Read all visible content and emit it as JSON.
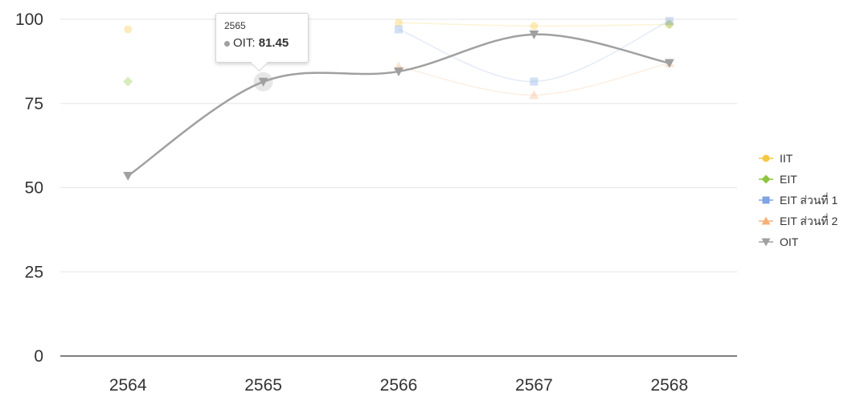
{
  "chart_data": {
    "type": "line",
    "categories": [
      "2564",
      "2565",
      "2566",
      "2567",
      "2568"
    ],
    "ylim": [
      0,
      100
    ],
    "yticks": [
      0,
      25,
      50,
      75,
      100
    ],
    "grid": true,
    "legend_position": "right",
    "series": [
      {
        "name": "IIT",
        "values": [
          97,
          null,
          99,
          98,
          98.5
        ],
        "color": "#f5c842",
        "marker": "circle",
        "faded": true
      },
      {
        "name": "EIT",
        "values": [
          81.5,
          null,
          null,
          null,
          98.5
        ],
        "color": "#8cc63f",
        "marker": "diamond",
        "faded": true
      },
      {
        "name": "EIT ส่วนที่ 1",
        "values": [
          null,
          null,
          97,
          81.5,
          99.5
        ],
        "color": "#7fa4e0",
        "marker": "square",
        "faded": true
      },
      {
        "name": "EIT ส่วนที่ 2",
        "values": [
          null,
          null,
          86,
          77.5,
          87
        ],
        "color": "#f5b07a",
        "marker": "triangle",
        "faded": true
      },
      {
        "name": "OIT",
        "values": [
          53.5,
          81.45,
          84.5,
          95.5,
          87
        ],
        "color": "#a0a0a0",
        "marker": "triangle-down",
        "faded": false
      }
    ],
    "tooltip": {
      "category": "2565",
      "series": "OIT",
      "label": "OIT:",
      "value": "81.45"
    }
  }
}
